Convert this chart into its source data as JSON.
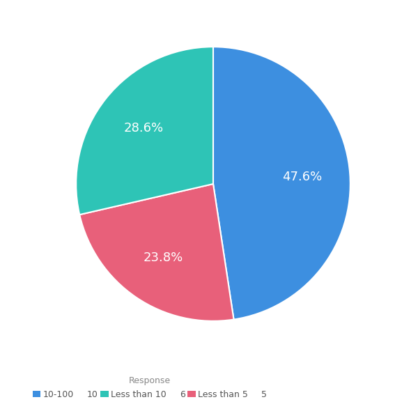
{
  "slices": [
    {
      "label": "10-100",
      "value": 47.6,
      "color": "#3d8fe0"
    },
    {
      "label": "Less than 5",
      "value": 23.8,
      "color": "#e8607a"
    },
    {
      "label": "Less than 10",
      "value": 28.6,
      "color": "#2ec4b6"
    }
  ],
  "legend_title": "Response",
  "legend_entries": [
    {
      "label": "10-100",
      "suffix": "10",
      "color": "#3d8fe0"
    },
    {
      "label": "Less than 10",
      "suffix": "6",
      "color": "#2ec4b6"
    },
    {
      "label": "Less than 5",
      "suffix": "5",
      "color": "#e8607a"
    }
  ],
  "text_color": "#ffffff",
  "autopct_fontsize": 13,
  "background_color": "#ffffff",
  "startangle": 90,
  "pct_distance": 0.65
}
